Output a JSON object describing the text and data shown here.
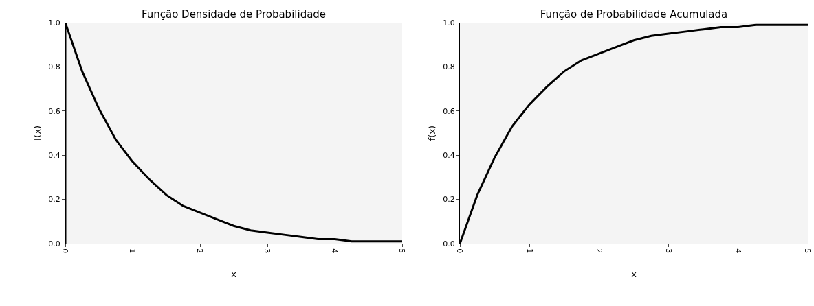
{
  "chart_data": [
    {
      "type": "line",
      "title": "Função Densidade de Probabilidade",
      "xlabel": "x",
      "ylabel": "f(x)",
      "x": [
        0,
        0,
        0.25,
        0.5,
        0.75,
        1,
        1.25,
        1.5,
        1.75,
        2,
        2.25,
        2.5,
        2.75,
        3,
        3.25,
        3.5,
        3.75,
        4,
        4.25,
        4.5,
        4.75,
        5
      ],
      "series": [
        {
          "color": "#000000",
          "values": [
            0,
            1,
            0.78,
            0.61,
            0.47,
            0.37,
            0.29,
            0.22,
            0.17,
            0.14,
            0.11,
            0.08,
            0.06,
            0.05,
            0.04,
            0.03,
            0.02,
            0.02,
            0.01,
            0.01,
            0.01,
            0.01
          ]
        }
      ],
      "xlim": [
        0,
        5
      ],
      "xticks": [
        0,
        1,
        2,
        3,
        4,
        5
      ],
      "ylim": [
        0,
        1
      ],
      "yticks": [
        {
          "value": 0,
          "label": "0.0"
        },
        {
          "value": 0.2,
          "label": "0.2"
        },
        {
          "value": 0.4,
          "label": "0.4"
        },
        {
          "value": 0.6,
          "label": "0.6"
        },
        {
          "value": 0.8,
          "label": "0.8"
        },
        {
          "value": 1,
          "label": "1.0"
        }
      ],
      "grid": false,
      "marker": "none",
      "line_style": "solid"
    },
    {
      "type": "line",
      "title": "Função de Probabilidade Acumulada",
      "xlabel": "x",
      "ylabel": "f(x)",
      "x": [
        0,
        0.25,
        0.5,
        0.75,
        1,
        1.25,
        1.5,
        1.75,
        2,
        2.25,
        2.5,
        2.75,
        3,
        3.25,
        3.5,
        3.75,
        4,
        4.25,
        4.5,
        4.75,
        5
      ],
      "series": [
        {
          "color": "#000000",
          "values": [
            0,
            0.22,
            0.39,
            0.53,
            0.63,
            0.71,
            0.78,
            0.83,
            0.86,
            0.89,
            0.92,
            0.94,
            0.95,
            0.96,
            0.97,
            0.98,
            0.98,
            0.99,
            0.99,
            0.99,
            0.99
          ]
        }
      ],
      "xlim": [
        0,
        5
      ],
      "xticks": [
        0,
        1,
        2,
        3,
        4,
        5
      ],
      "ylim": [
        0,
        1
      ],
      "yticks": [
        {
          "value": 0,
          "label": "0.0"
        },
        {
          "value": 0.2,
          "label": "0.2"
        },
        {
          "value": 0.4,
          "label": "0.4"
        },
        {
          "value": 0.6,
          "label": "0.6"
        },
        {
          "value": 0.8,
          "label": "0.8"
        },
        {
          "value": 1,
          "label": "1.0"
        }
      ],
      "grid": false,
      "marker": "none",
      "line_style": "solid"
    }
  ]
}
